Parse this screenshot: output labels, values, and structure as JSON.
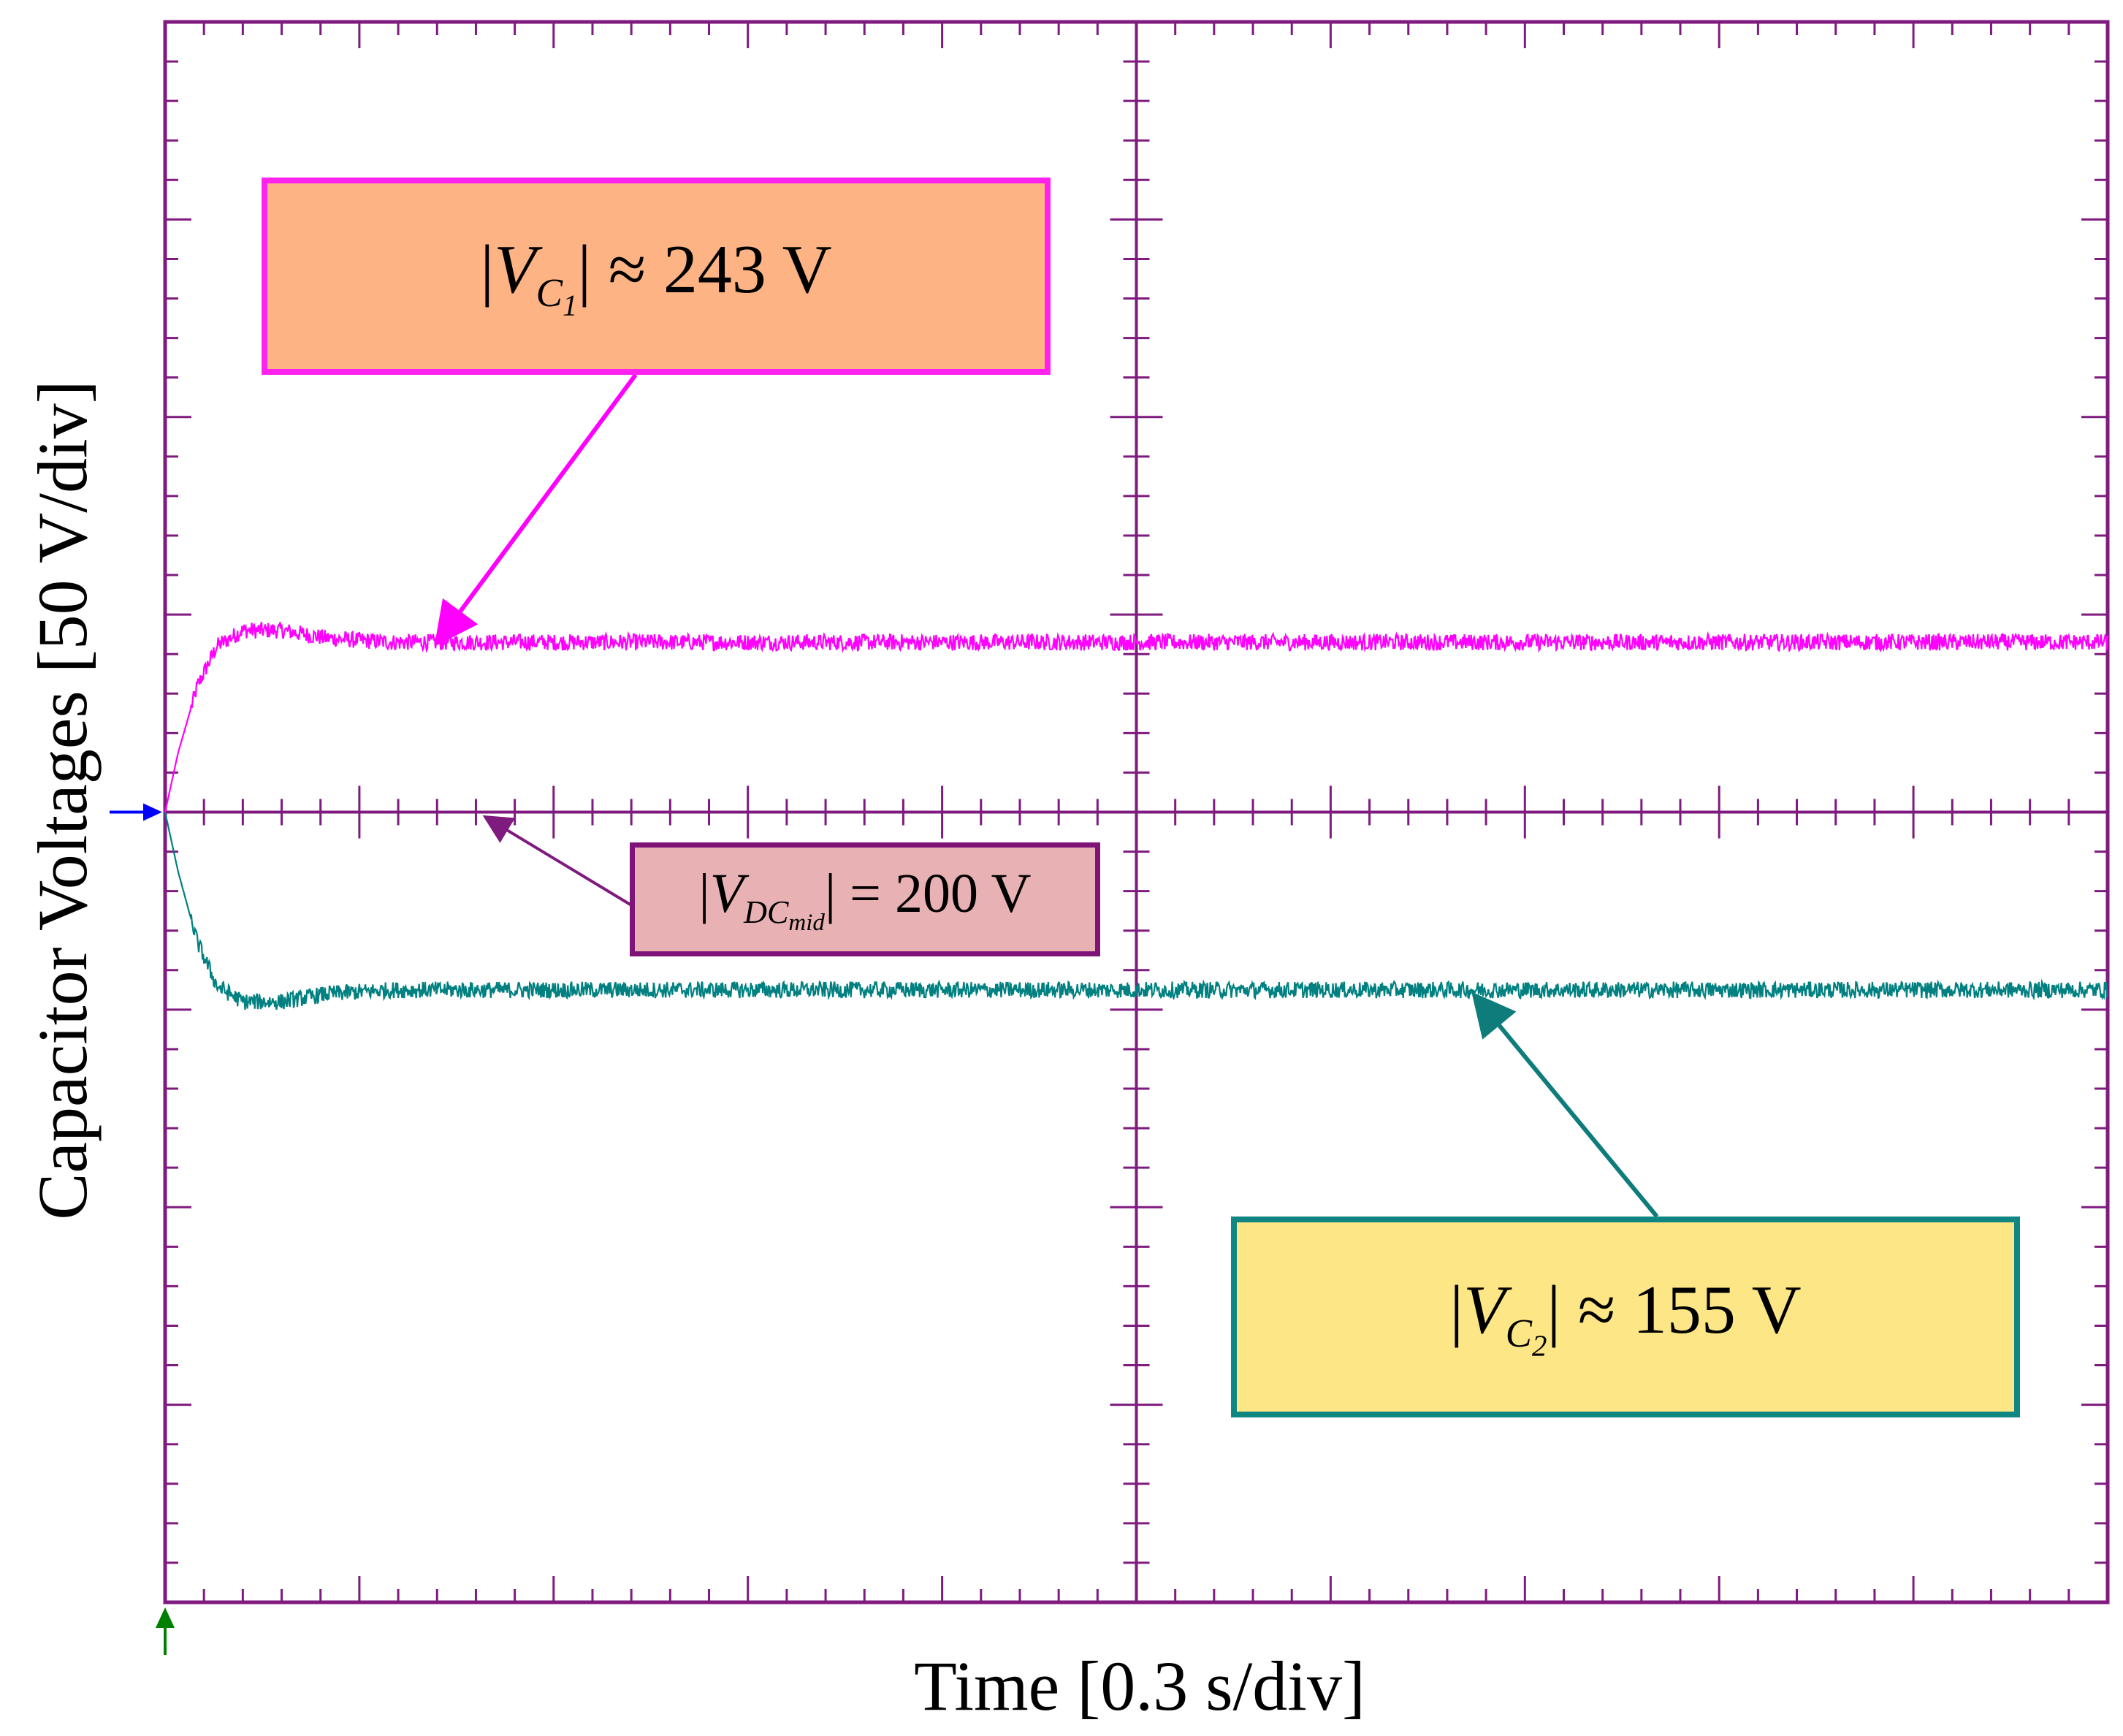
{
  "chart_data": {
    "type": "line",
    "title": "",
    "xlabel": "Time [0.3 s/div]",
    "ylabel": "Capacitor Voltages [50 V/div]",
    "x_divisions": 10,
    "y_divisions": 8,
    "x_unit": "s",
    "x_per_div": 0.3,
    "y_unit": "V",
    "y_per_div": 50,
    "xlim": [
      0,
      3.0
    ],
    "ylim": [
      0,
      400
    ],
    "grid": "major divisions at center only (oscilloscope style)",
    "series": [
      {
        "id": "vc1",
        "color": "#ff00ff",
        "x": [
          0,
          0.02,
          0.05,
          0.08,
          0.12,
          0.18,
          0.25,
          0.35,
          0.5,
          0.8,
          1.2,
          1.6,
          2.0,
          2.5,
          3.0
        ],
        "values": [
          200,
          215,
          232,
          242,
          246,
          246,
          244,
          243,
          243,
          243,
          243,
          243,
          243,
          243,
          243
        ]
      },
      {
        "id": "vc2",
        "color": "#008080",
        "x": [
          0,
          0.02,
          0.05,
          0.08,
          0.12,
          0.18,
          0.25,
          0.35,
          0.5,
          0.8,
          1.2,
          1.6,
          2.0,
          2.5,
          3.0
        ],
        "values": [
          200,
          185,
          167,
          156,
          152,
          152,
          154,
          155,
          155,
          155,
          155,
          155,
          155,
          155,
          155
        ]
      }
    ],
    "annotations": [
      {
        "id": "vc1",
        "math": [
          "|",
          "V",
          "C",
          "1",
          "| ≈ 243 V"
        ],
        "points_to_series": "vc1"
      },
      {
        "id": "vdc",
        "math": [
          "|",
          "V",
          "DC",
          "mid",
          "| = 200 V"
        ],
        "points_to_series": "reference"
      },
      {
        "id": "vc2",
        "math": [
          "|",
          "V",
          "C",
          "2",
          "| ≈ 155 V"
        ],
        "points_to_series": "vc2"
      }
    ],
    "markers": {
      "ground_marker_color": "#0000ff",
      "trigger_marker_color": "#008000"
    }
  },
  "colors": {
    "frame": "#7f1a7f",
    "vc1_box_fill": "#fdb383",
    "vc1_box_border": "#ff22ee",
    "vdc_box_fill": "#e8b1b3",
    "vdc_box_border": "#7e1378",
    "vc2_box_fill": "#fde685",
    "vc2_box_border": "#108683"
  }
}
